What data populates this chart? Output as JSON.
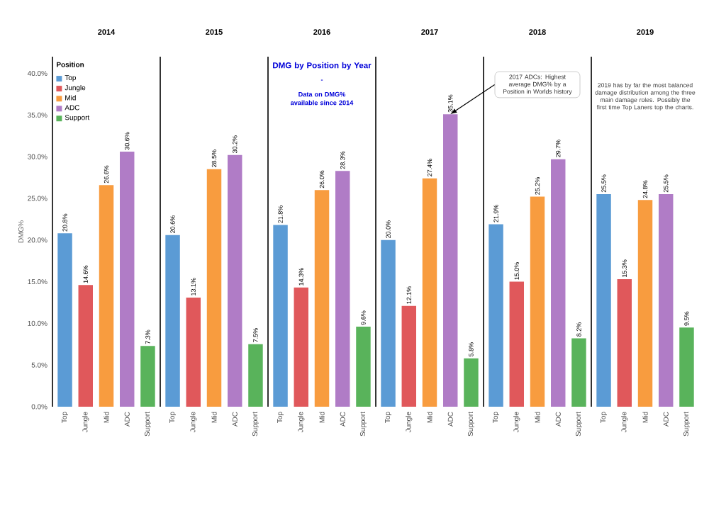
{
  "chart_data": [
    {
      "type": "bar",
      "title": "2014",
      "ylabel": "DMG%",
      "legend": "top left",
      "legend_title": "Position",
      "categories": [
        "Top",
        "Jungle",
        "Mid",
        "ADC",
        "Support"
      ],
      "series": [
        {
          "name": "Top",
          "color": "#5b9bd5",
          "values": [
            20.8,
            null,
            null,
            null,
            null
          ],
          "value_labels": [
            "20.8%",
            null,
            null,
            null,
            null
          ]
        },
        {
          "name": "Jungle",
          "color": "#e0585b",
          "values": [
            null,
            14.6,
            null,
            null,
            null
          ],
          "value_labels": [
            null,
            "14.6%",
            null,
            null,
            null
          ]
        },
        {
          "name": "Mid",
          "color": "#f89c3f",
          "values": [
            null,
            null,
            26.6,
            null,
            null
          ],
          "value_labels": [
            null,
            null,
            "26.6%",
            null,
            null
          ]
        },
        {
          "name": "ADC",
          "color": "#b07cc6",
          "values": [
            null,
            null,
            null,
            30.6,
            null
          ],
          "value_labels": [
            null,
            null,
            null,
            "30.6%",
            null
          ]
        },
        {
          "name": "Support",
          "color": "#59b35b",
          "values": [
            null,
            null,
            null,
            null,
            7.3
          ],
          "value_labels": [
            null,
            null,
            null,
            null,
            "7.3%"
          ]
        }
      ],
      "ylim": [
        0,
        42
      ],
      "yticks": [
        {
          "value": 0,
          "label": "0.0%"
        },
        {
          "value": 5,
          "label": "5.0%"
        },
        {
          "value": 10,
          "label": "10.0%"
        },
        {
          "value": 15,
          "label": "15.0%"
        },
        {
          "value": 20,
          "label": "20.0%"
        },
        {
          "value": 25,
          "label": "25.0%"
        },
        {
          "value": 30,
          "label": "30.0%"
        },
        {
          "value": 35,
          "label": "35.0%"
        },
        {
          "value": 40,
          "label": "40.0%"
        }
      ]
    },
    {
      "type": "bar",
      "title": "2015",
      "tick_labels": "x",
      "categories": [
        "Top",
        "Jungle",
        "Mid",
        "ADC",
        "Support"
      ],
      "values": [
        20.6,
        13.1,
        28.5,
        30.2,
        7.5
      ],
      "value_labels": [
        "20.6%",
        "13.1%",
        "28.5%",
        "30.2%",
        "7.5%"
      ],
      "colors": [
        "#5b9bd5",
        "#e0585b",
        "#f89c3f",
        "#b07cc6",
        "#59b35b"
      ],
      "ylim": [
        0,
        42
      ]
    },
    {
      "type": "bar",
      "title": "2016",
      "tick_labels": "x",
      "annotations": [
        "DMG by Position by Year",
        "-",
        "Data on DMG% available since 2014"
      ],
      "categories": [
        "Top",
        "Jungle",
        "Mid",
        "ADC",
        "Support"
      ],
      "values": [
        21.8,
        14.3,
        26.0,
        28.3,
        9.6
      ],
      "value_labels": [
        "21.8%",
        "14.3%",
        "26.0%",
        "28.3%",
        "9.6%"
      ],
      "colors": [
        "#5b9bd5",
        "#e0585b",
        "#f89c3f",
        "#b07cc6",
        "#59b35b"
      ],
      "ylim": [
        0,
        42
      ]
    },
    {
      "type": "bar",
      "title": "2017",
      "tick_labels": "x",
      "annotations": [
        "2017 ADCs: Highest average DMG% by a Position in Worlds history"
      ],
      "categories": [
        "Top",
        "Jungle",
        "Mid",
        "ADC",
        "Support"
      ],
      "values": [
        20.0,
        12.1,
        27.4,
        35.1,
        5.8
      ],
      "value_labels": [
        "20.0%",
        "12.1%",
        "27.4%",
        "35.1%",
        "5.8%"
      ],
      "colors": [
        "#5b9bd5",
        "#e0585b",
        "#f89c3f",
        "#b07cc6",
        "#59b35b"
      ],
      "ylim": [
        0,
        42
      ]
    },
    {
      "type": "bar",
      "title": "2018",
      "tick_labels": "x",
      "categories": [
        "Top",
        "Jungle",
        "Mid",
        "ADC",
        "Support"
      ],
      "values": [
        21.9,
        15.0,
        25.2,
        29.7,
        8.2
      ],
      "value_labels": [
        "21.9%",
        "15.0%",
        "25.2%",
        "29.7%",
        "8.2%"
      ],
      "colors": [
        "#5b9bd5",
        "#e0585b",
        "#f89c3f",
        "#b07cc6",
        "#59b35b"
      ],
      "ylim": [
        0,
        42
      ]
    },
    {
      "type": "bar",
      "title": "2019",
      "tick_labels": "x",
      "annotations": [
        "2019 has by far the most balanced damage distribution among the three main damage roles. Possibly the first time Top Laners top the charts."
      ],
      "categories": [
        "Top",
        "Jungle",
        "Mid",
        "ADC",
        "Support"
      ],
      "values": [
        25.5,
        15.3,
        24.8,
        25.5,
        9.5
      ],
      "value_labels": [
        "25.5%",
        "15.3%",
        "24.8%",
        "25.5%",
        "9.5%"
      ],
      "colors": [
        "#5b9bd5",
        "#e0585b",
        "#f89c3f",
        "#b07cc6",
        "#59b35b"
      ],
      "ylim": [
        0,
        42
      ]
    }
  ]
}
